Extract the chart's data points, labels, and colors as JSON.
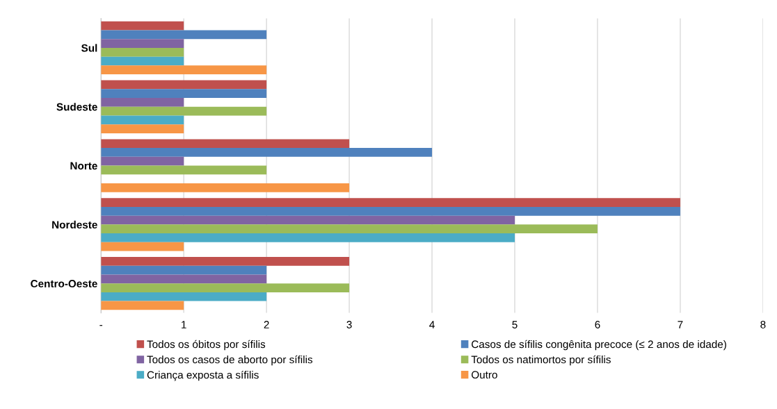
{
  "chart_data": {
    "type": "bar",
    "orientation": "horizontal",
    "categories": [
      "Sul",
      "Sudeste",
      "Norte",
      "Nordeste",
      "Centro-Oeste"
    ],
    "series": [
      {
        "name": "Todos os óbitos por sífilis",
        "color": "#c0504d",
        "values": [
          1,
          2,
          3,
          7,
          3
        ]
      },
      {
        "name": "Casos de sífilis congênita precoce (≤ 2 anos de idade)",
        "color": "#4f81bd",
        "values": [
          2,
          2,
          4,
          7,
          2
        ]
      },
      {
        "name": "Todos os casos de aborto por sífilis",
        "color": "#8064a2",
        "values": [
          1,
          1,
          1,
          5,
          2
        ]
      },
      {
        "name": "Todos os natimortos por sífilis",
        "color": "#9bbb59",
        "values": [
          1,
          2,
          2,
          6,
          3
        ]
      },
      {
        "name": "Criança exposta a sífilis",
        "color": "#4bacc6",
        "values": [
          1,
          1,
          null,
          5,
          2
        ]
      },
      {
        "name": "Outro",
        "color": "#f79646",
        "values": [
          2,
          1,
          3,
          1,
          1
        ]
      }
    ],
    "xlim": [
      0,
      8
    ],
    "xticks": [
      {
        "value": 0,
        "label": "-"
      },
      1,
      2,
      3,
      4,
      5,
      6,
      7,
      8
    ],
    "grid": "x",
    "legend": "bottom"
  }
}
